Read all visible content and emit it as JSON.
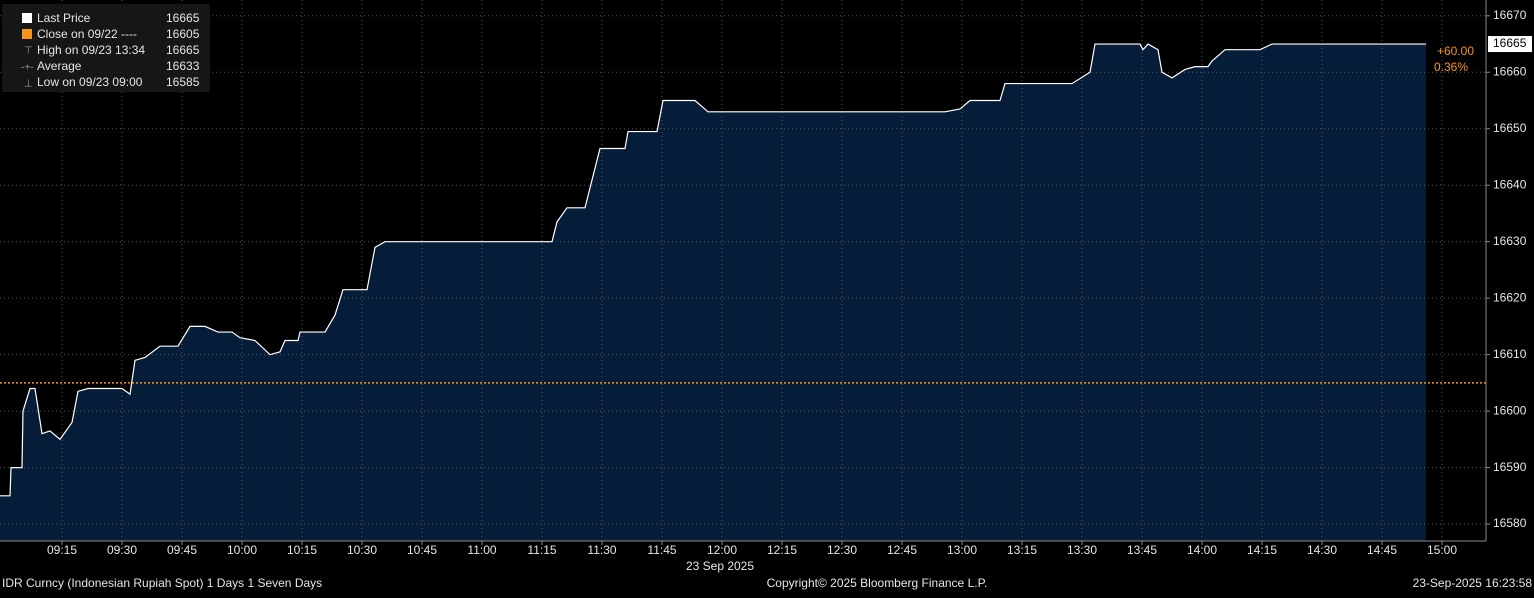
{
  "chart_data": {
    "type": "area",
    "x": [
      539.5,
      542,
      542.25,
      545,
      545.25,
      547,
      548.25,
      550,
      552,
      554.5,
      557.5,
      559,
      561.5,
      570,
      572,
      573.25,
      575.75,
      579.5,
      584,
      587,
      590.75,
      594,
      597.5,
      599.5,
      603.25,
      607,
      609.5,
      610.75,
      614,
      614.5,
      620.75,
      623.25,
      625.25,
      631.25,
      633.25,
      635.75,
      677.5,
      678.75,
      681.25,
      685.75,
      689.5,
      695.75,
      696.5,
      703.75,
      705.25,
      713.25,
      716.5,
      775.75,
      779.5,
      782,
      789.5,
      790.75,
      807.5,
      812,
      813.25,
      824.5,
      825.25,
      826.5,
      829,
      830,
      832.5,
      835.75,
      838.25,
      841.5,
      842.5,
      845.75,
      854.5,
      857.5,
      896
    ],
    "series": [
      {
        "name": "Last Price",
        "color": "#ffffff",
        "fill": "#061d3a",
        "values": [
          16585,
          16585,
          16590,
          16590,
          16600,
          16604,
          16604,
          16596,
          16596.5,
          16595,
          16598,
          16603.5,
          16604,
          16604,
          16603,
          16609,
          16609.5,
          16611.5,
          16611.5,
          16615,
          16615,
          16614,
          16614,
          16613,
          16612.5,
          16610,
          16610.5,
          16612.5,
          16612.5,
          16614,
          16614,
          16617,
          16621.5,
          16621.5,
          16629,
          16630,
          16630,
          16633.5,
          16636,
          16636,
          16646.5,
          16646.5,
          16649.5,
          16649.5,
          16655,
          16655,
          16653,
          16653,
          16653.5,
          16655,
          16655,
          16658,
          16658,
          16660,
          16665,
          16665,
          16664,
          16665,
          16664,
          16660,
          16659,
          16660.5,
          16661,
          16661,
          16662,
          16664,
          16664,
          16665,
          16665
        ]
      }
    ],
    "reference": {
      "value": 16605,
      "color": "#f7941d"
    },
    "legend": [
      {
        "label": "Last Price",
        "value": 16665
      },
      {
        "label": "Close on 09/22 ----",
        "value": 16605
      },
      {
        "label": "High on 09/23 13:34",
        "value": 16665
      },
      {
        "label": "Average",
        "value": 16633
      },
      {
        "label": "Low on 09/23 09:00",
        "value": 16585
      }
    ],
    "change": {
      "value": 60,
      "label": "+60.00"
    },
    "change_pct": {
      "value": 0.36,
      "label": "0.36%"
    },
    "xlim": [
      539.5,
      911
    ],
    "ylim": [
      16577,
      16672.8
    ],
    "yticks": [
      16580,
      16590,
      16600,
      16610,
      16620,
      16630,
      16640,
      16650,
      16660,
      16670
    ],
    "xticks": [
      {
        "value": 555,
        "label": "09:15"
      },
      {
        "value": 570,
        "label": "09:30"
      },
      {
        "value": 585,
        "label": "09:45"
      },
      {
        "value": 600,
        "label": "10:00"
      },
      {
        "value": 615,
        "label": "10:15"
      },
      {
        "value": 630,
        "label": "10:30"
      },
      {
        "value": 645,
        "label": "10:45"
      },
      {
        "value": 660,
        "label": "11:00"
      },
      {
        "value": 675,
        "label": "11:15"
      },
      {
        "value": 690,
        "label": "11:30"
      },
      {
        "value": 705,
        "label": "11:45"
      },
      {
        "value": 720,
        "label": "12:00"
      },
      {
        "value": 735,
        "label": "12:15"
      },
      {
        "value": 750,
        "label": "12:30"
      },
      {
        "value": 765,
        "label": "12:45"
      },
      {
        "value": 780,
        "label": "13:00"
      },
      {
        "value": 795,
        "label": "13:15"
      },
      {
        "value": 810,
        "label": "13:30"
      },
      {
        "value": 825,
        "label": "13:45"
      },
      {
        "value": 840,
        "label": "14:00"
      },
      {
        "value": 855,
        "label": "14:15"
      },
      {
        "value": 870,
        "label": "14:30"
      },
      {
        "value": 885,
        "label": "14:45"
      },
      {
        "value": 900,
        "label": "15:00"
      }
    ],
    "x_date": "23 Sep 2025",
    "grid": true,
    "footer": {
      "left": "IDR Curncy (Indonesian Rupiah Spot) 1 Days 1 Seven Days",
      "center": "Copyright© 2025 Bloomberg Finance L.P.",
      "right": "23-Sep-2025 16:23:58"
    }
  }
}
